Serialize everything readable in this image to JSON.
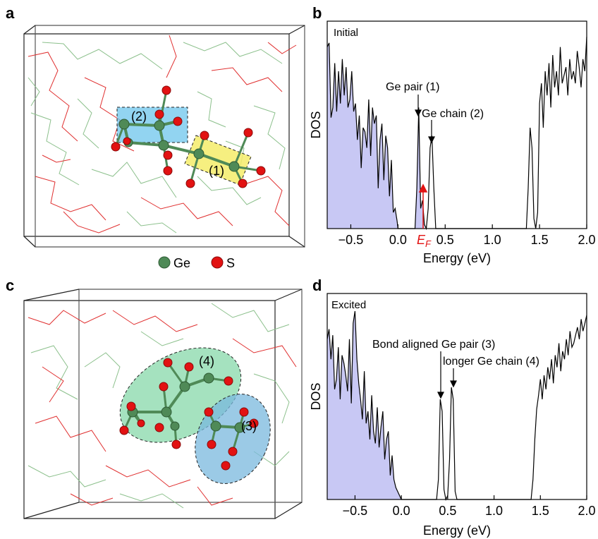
{
  "panels": {
    "a": "a",
    "b": "b",
    "c": "c",
    "d": "d"
  },
  "structure_a": {
    "label_1": "(1)",
    "label_2": "(2)",
    "highlight_colors": {
      "blue": "#6ec6ec",
      "yellow": "#f5ec6a"
    }
  },
  "legend": {
    "ge_label": "Ge",
    "s_label": "S",
    "ge_color": "#4f8a57",
    "s_color": "#e21212"
  },
  "structure_c": {
    "label_3": "(3)",
    "label_4": "(4)",
    "highlight_colors": {
      "green": "#7fd6a4",
      "blue": "#79b8de"
    }
  },
  "dos_b": {
    "box_label": "Initial",
    "annotation_1": "Ge pair (1)",
    "annotation_2": "Ge chain (2)",
    "fermi_label": "E",
    "fermi_sub": "F"
  },
  "dos_d": {
    "box_label": "Excited",
    "annotation_3": "Bond aligned Ge pair (3)",
    "annotation_4": "longer Ge chain (4)"
  },
  "chart_data": [
    {
      "type": "line",
      "title": "",
      "xlabel": "Energy (eV)",
      "ylabel": "DOS",
      "xlim": [
        -0.75,
        2.0
      ],
      "xticks": [
        -0.5,
        0.0,
        0.5,
        1.0,
        1.5,
        2.0
      ],
      "xtick_labels": [
        "−0.5",
        "0.0",
        "0.5",
        "1.0",
        "1.5",
        "2.0"
      ],
      "fill_color": "#c8c8f4",
      "fill_range": [
        -0.75,
        0.28
      ],
      "x": [
        -0.75,
        -0.73,
        -0.71,
        -0.69,
        -0.67,
        -0.65,
        -0.63,
        -0.61,
        -0.59,
        -0.57,
        -0.55,
        -0.53,
        -0.51,
        -0.49,
        -0.47,
        -0.45,
        -0.43,
        -0.41,
        -0.39,
        -0.37,
        -0.35,
        -0.33,
        -0.31,
        -0.29,
        -0.27,
        -0.25,
        -0.23,
        -0.21,
        -0.19,
        -0.17,
        -0.15,
        -0.13,
        -0.11,
        -0.09,
        -0.07,
        -0.05,
        -0.03,
        -0.01,
        0.0,
        0.05,
        0.1,
        0.15,
        0.18,
        0.2,
        0.22,
        0.24,
        0.26,
        0.28,
        0.3,
        0.32,
        0.34,
        0.36,
        0.38,
        0.4,
        0.42,
        0.45,
        0.5,
        0.6,
        0.8,
        1.0,
        1.2,
        1.3,
        1.36,
        1.38,
        1.4,
        1.42,
        1.44,
        1.46,
        1.48,
        1.5,
        1.52,
        1.54,
        1.56,
        1.58,
        1.6,
        1.62,
        1.64,
        1.66,
        1.68,
        1.7,
        1.72,
        1.74,
        1.76,
        1.78,
        1.8,
        1.82,
        1.84,
        1.86,
        1.88,
        1.9,
        1.92,
        1.94,
        1.96,
        1.98,
        2.0
      ],
      "y": [
        0.9,
        0.92,
        0.55,
        0.6,
        0.82,
        0.58,
        0.78,
        0.62,
        0.84,
        0.66,
        0.8,
        0.6,
        0.64,
        0.78,
        0.58,
        0.62,
        0.44,
        0.56,
        0.3,
        0.5,
        0.48,
        0.4,
        0.64,
        0.36,
        0.6,
        0.52,
        0.56,
        0.2,
        0.44,
        0.52,
        0.24,
        0.46,
        0.4,
        0.16,
        0.34,
        0.08,
        0.1,
        0.04,
        0.0,
        0.0,
        0.0,
        0.0,
        0.0,
        0.2,
        0.6,
        0.1,
        0.14,
        0.02,
        0.0,
        0.1,
        0.4,
        0.46,
        0.2,
        0.0,
        0.0,
        0.0,
        0.0,
        0.0,
        0.0,
        0.0,
        0.0,
        0.0,
        0.0,
        0.2,
        0.5,
        0.4,
        0.05,
        0.0,
        0.08,
        0.62,
        0.72,
        0.5,
        0.78,
        0.66,
        0.82,
        0.6,
        0.86,
        0.7,
        0.78,
        0.66,
        0.9,
        0.72,
        0.76,
        0.8,
        0.66,
        0.84,
        0.74,
        0.78,
        0.72,
        0.88,
        0.8,
        0.7,
        0.84,
        0.78,
        0.95
      ]
    },
    {
      "type": "line",
      "title": "",
      "xlabel": "Energy (eV)",
      "ylabel": "DOS",
      "xlim": [
        -0.8,
        2.0
      ],
      "xticks": [
        -0.5,
        0.0,
        0.5,
        1.0,
        1.5,
        2.0
      ],
      "xtick_labels": [
        "−0.5",
        "0.0",
        "0.5",
        "1.0",
        "1.5",
        "2.0"
      ],
      "fill_color": "#c8c8f4",
      "fill_range": [
        -0.8,
        0.0
      ],
      "x": [
        -0.8,
        -0.78,
        -0.76,
        -0.74,
        -0.72,
        -0.7,
        -0.68,
        -0.66,
        -0.64,
        -0.62,
        -0.6,
        -0.58,
        -0.56,
        -0.54,
        -0.52,
        -0.5,
        -0.48,
        -0.46,
        -0.44,
        -0.42,
        -0.4,
        -0.38,
        -0.36,
        -0.34,
        -0.32,
        -0.3,
        -0.28,
        -0.26,
        -0.24,
        -0.22,
        -0.2,
        -0.18,
        -0.16,
        -0.14,
        -0.12,
        -0.1,
        -0.08,
        -0.06,
        -0.04,
        -0.02,
        0.0,
        0.1,
        0.2,
        0.3,
        0.38,
        0.4,
        0.42,
        0.44,
        0.46,
        0.48,
        0.5,
        0.52,
        0.54,
        0.56,
        0.58,
        0.6,
        0.62,
        0.7,
        0.9,
        1.1,
        1.3,
        1.4,
        1.42,
        1.44,
        1.46,
        1.48,
        1.5,
        1.52,
        1.54,
        1.56,
        1.58,
        1.6,
        1.62,
        1.64,
        1.66,
        1.68,
        1.7,
        1.72,
        1.74,
        1.76,
        1.78,
        1.8,
        1.82,
        1.84,
        1.86,
        1.88,
        1.9,
        1.92,
        1.94,
        1.96,
        1.98,
        2.0
      ],
      "y": [
        0.8,
        0.85,
        0.7,
        0.82,
        0.55,
        0.6,
        0.76,
        0.5,
        0.72,
        0.68,
        0.62,
        0.54,
        0.8,
        0.48,
        0.88,
        0.94,
        0.7,
        0.58,
        0.5,
        0.4,
        0.64,
        0.38,
        0.44,
        0.3,
        0.52,
        0.34,
        0.28,
        0.46,
        0.26,
        0.36,
        0.44,
        0.2,
        0.3,
        0.34,
        0.12,
        0.22,
        0.1,
        0.06,
        0.04,
        0.02,
        0.0,
        0.0,
        0.0,
        0.0,
        0.0,
        0.1,
        0.5,
        0.44,
        0.05,
        0.0,
        0.02,
        0.2,
        0.56,
        0.5,
        0.04,
        0.0,
        0.0,
        0.0,
        0.0,
        0.0,
        0.0,
        0.0,
        0.1,
        0.3,
        0.45,
        0.52,
        0.6,
        0.5,
        0.62,
        0.55,
        0.66,
        0.6,
        0.7,
        0.58,
        0.72,
        0.66,
        0.78,
        0.64,
        0.74,
        0.7,
        0.8,
        0.72,
        0.84,
        0.76,
        0.78,
        0.82,
        0.86,
        0.8,
        0.9,
        0.84,
        0.88,
        0.92
      ]
    }
  ]
}
